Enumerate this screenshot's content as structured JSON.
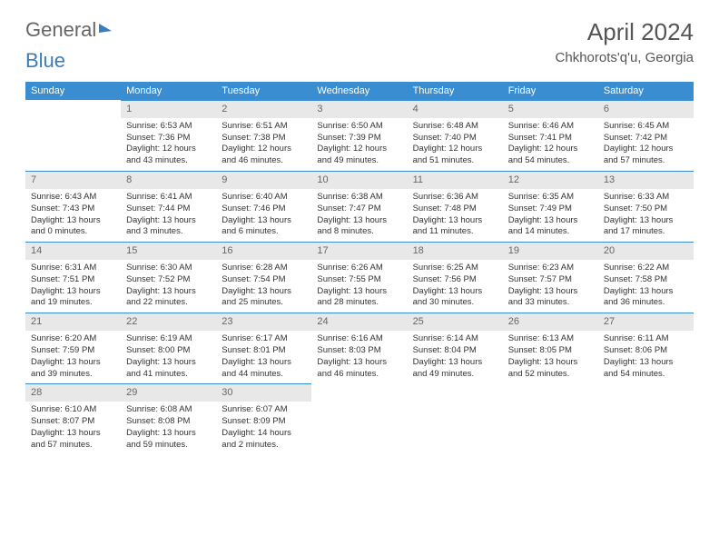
{
  "brand": {
    "part1": "General",
    "part2": "Blue"
  },
  "title": "April 2024",
  "location": "Chkhorots'q'u, Georgia",
  "colors": {
    "header_bg": "#3a8dd0",
    "daynum_bg": "#e8e8e8",
    "text": "#333333",
    "brand_gray": "#666666",
    "brand_blue": "#3a7db8"
  },
  "weekdays": [
    "Sunday",
    "Monday",
    "Tuesday",
    "Wednesday",
    "Thursday",
    "Friday",
    "Saturday"
  ],
  "weeks": [
    [
      null,
      {
        "n": "1",
        "sunrise": "6:53 AM",
        "sunset": "7:36 PM",
        "daylight": "12 hours and 43 minutes."
      },
      {
        "n": "2",
        "sunrise": "6:51 AM",
        "sunset": "7:38 PM",
        "daylight": "12 hours and 46 minutes."
      },
      {
        "n": "3",
        "sunrise": "6:50 AM",
        "sunset": "7:39 PM",
        "daylight": "12 hours and 49 minutes."
      },
      {
        "n": "4",
        "sunrise": "6:48 AM",
        "sunset": "7:40 PM",
        "daylight": "12 hours and 51 minutes."
      },
      {
        "n": "5",
        "sunrise": "6:46 AM",
        "sunset": "7:41 PM",
        "daylight": "12 hours and 54 minutes."
      },
      {
        "n": "6",
        "sunrise": "6:45 AM",
        "sunset": "7:42 PM",
        "daylight": "12 hours and 57 minutes."
      }
    ],
    [
      {
        "n": "7",
        "sunrise": "6:43 AM",
        "sunset": "7:43 PM",
        "daylight": "13 hours and 0 minutes."
      },
      {
        "n": "8",
        "sunrise": "6:41 AM",
        "sunset": "7:44 PM",
        "daylight": "13 hours and 3 minutes."
      },
      {
        "n": "9",
        "sunrise": "6:40 AM",
        "sunset": "7:46 PM",
        "daylight": "13 hours and 6 minutes."
      },
      {
        "n": "10",
        "sunrise": "6:38 AM",
        "sunset": "7:47 PM",
        "daylight": "13 hours and 8 minutes."
      },
      {
        "n": "11",
        "sunrise": "6:36 AM",
        "sunset": "7:48 PM",
        "daylight": "13 hours and 11 minutes."
      },
      {
        "n": "12",
        "sunrise": "6:35 AM",
        "sunset": "7:49 PM",
        "daylight": "13 hours and 14 minutes."
      },
      {
        "n": "13",
        "sunrise": "6:33 AM",
        "sunset": "7:50 PM",
        "daylight": "13 hours and 17 minutes."
      }
    ],
    [
      {
        "n": "14",
        "sunrise": "6:31 AM",
        "sunset": "7:51 PM",
        "daylight": "13 hours and 19 minutes."
      },
      {
        "n": "15",
        "sunrise": "6:30 AM",
        "sunset": "7:52 PM",
        "daylight": "13 hours and 22 minutes."
      },
      {
        "n": "16",
        "sunrise": "6:28 AM",
        "sunset": "7:54 PM",
        "daylight": "13 hours and 25 minutes."
      },
      {
        "n": "17",
        "sunrise": "6:26 AM",
        "sunset": "7:55 PM",
        "daylight": "13 hours and 28 minutes."
      },
      {
        "n": "18",
        "sunrise": "6:25 AM",
        "sunset": "7:56 PM",
        "daylight": "13 hours and 30 minutes."
      },
      {
        "n": "19",
        "sunrise": "6:23 AM",
        "sunset": "7:57 PM",
        "daylight": "13 hours and 33 minutes."
      },
      {
        "n": "20",
        "sunrise": "6:22 AM",
        "sunset": "7:58 PM",
        "daylight": "13 hours and 36 minutes."
      }
    ],
    [
      {
        "n": "21",
        "sunrise": "6:20 AM",
        "sunset": "7:59 PM",
        "daylight": "13 hours and 39 minutes."
      },
      {
        "n": "22",
        "sunrise": "6:19 AM",
        "sunset": "8:00 PM",
        "daylight": "13 hours and 41 minutes."
      },
      {
        "n": "23",
        "sunrise": "6:17 AM",
        "sunset": "8:01 PM",
        "daylight": "13 hours and 44 minutes."
      },
      {
        "n": "24",
        "sunrise": "6:16 AM",
        "sunset": "8:03 PM",
        "daylight": "13 hours and 46 minutes."
      },
      {
        "n": "25",
        "sunrise": "6:14 AM",
        "sunset": "8:04 PM",
        "daylight": "13 hours and 49 minutes."
      },
      {
        "n": "26",
        "sunrise": "6:13 AM",
        "sunset": "8:05 PM",
        "daylight": "13 hours and 52 minutes."
      },
      {
        "n": "27",
        "sunrise": "6:11 AM",
        "sunset": "8:06 PM",
        "daylight": "13 hours and 54 minutes."
      }
    ],
    [
      {
        "n": "28",
        "sunrise": "6:10 AM",
        "sunset": "8:07 PM",
        "daylight": "13 hours and 57 minutes."
      },
      {
        "n": "29",
        "sunrise": "6:08 AM",
        "sunset": "8:08 PM",
        "daylight": "13 hours and 59 minutes."
      },
      {
        "n": "30",
        "sunrise": "6:07 AM",
        "sunset": "8:09 PM",
        "daylight": "14 hours and 2 minutes."
      },
      null,
      null,
      null,
      null
    ]
  ],
  "labels": {
    "sunrise": "Sunrise:",
    "sunset": "Sunset:",
    "daylight": "Daylight:"
  }
}
